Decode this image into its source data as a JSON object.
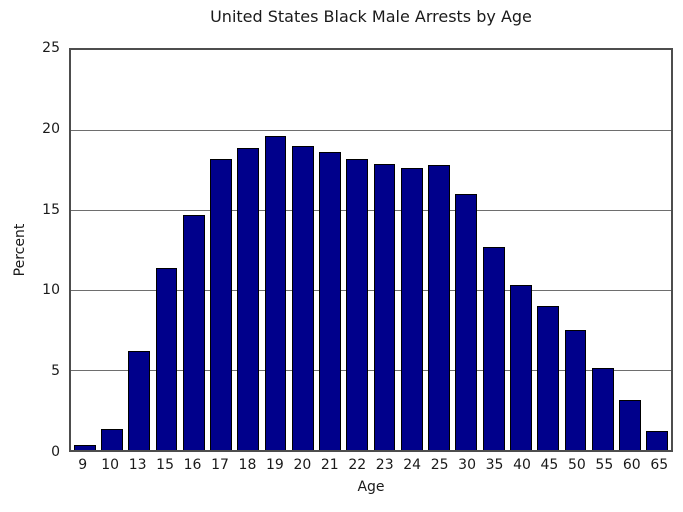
{
  "title": "United States Black Male Arrests by Age",
  "colors": {
    "bar_fill": "#00008b",
    "bar_edge": "#000000",
    "gridline": "#6e6e6e",
    "frame": "#4d4d4d",
    "text": "#1a1a1a",
    "background": "#ffffff"
  },
  "chart_data": {
    "type": "bar",
    "title": "United States Black Male Arrests by Age",
    "xlabel": "Age",
    "ylabel": "Percent",
    "categories": [
      "9",
      "10",
      "13",
      "15",
      "16",
      "17",
      "18",
      "19",
      "20",
      "21",
      "22",
      "23",
      "24",
      "25",
      "30",
      "35",
      "40",
      "45",
      "50",
      "55",
      "60",
      "65"
    ],
    "values": [
      0.3,
      1.3,
      6.2,
      11.4,
      14.7,
      18.2,
      18.9,
      19.6,
      19.0,
      18.6,
      18.2,
      17.9,
      17.6,
      17.8,
      16.0,
      12.7,
      10.3,
      9.0,
      7.5,
      5.1,
      3.1,
      1.2
    ],
    "ylim": [
      0,
      25
    ],
    "yticks": [
      0,
      5,
      10,
      15,
      20,
      25
    ],
    "grid": true,
    "legend": "none"
  }
}
